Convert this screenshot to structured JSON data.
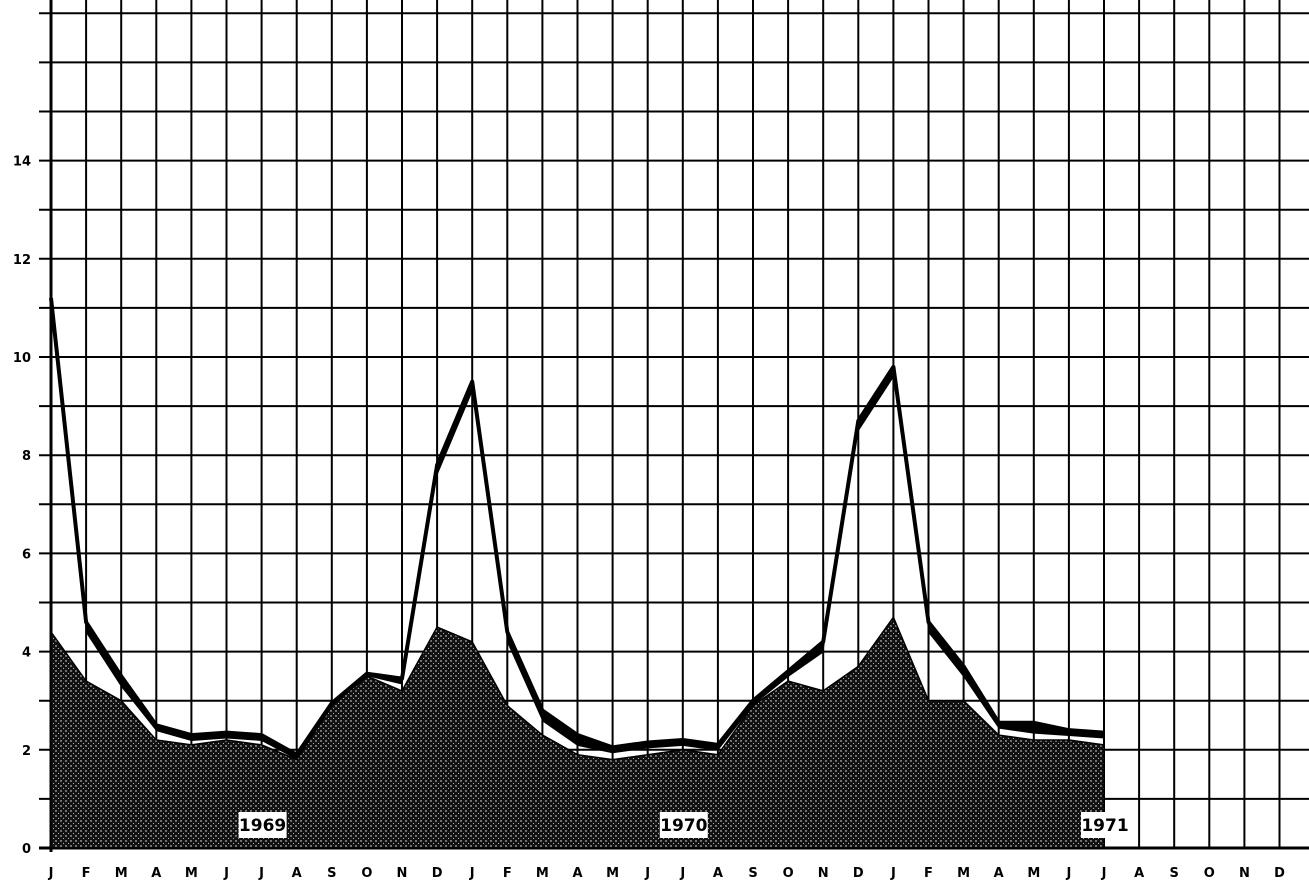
{
  "chart_data": {
    "type": "area",
    "title": "",
    "xlabel": "",
    "ylabel": "",
    "ylim": [
      0,
      17
    ],
    "y_ticks": [
      0,
      2,
      4,
      6,
      8,
      10,
      12,
      14
    ],
    "grid": true,
    "x_tick_labels": [
      "J",
      "F",
      "M",
      "A",
      "M",
      "J",
      "J",
      "A",
      "S",
      "O",
      "N",
      "D",
      "J",
      "F",
      "M",
      "A",
      "M",
      "J",
      "J",
      "A",
      "S",
      "O",
      "N",
      "D",
      "J",
      "F",
      "M",
      "A",
      "M",
      "J",
      "J",
      "A",
      "S",
      "O",
      "N",
      "D"
    ],
    "year_labels": [
      {
        "label": "1969",
        "month_index": 6
      },
      {
        "label": "1970",
        "month_index": 18
      },
      {
        "label": "1971",
        "month_index": 30
      }
    ],
    "series": [
      {
        "values": [
          4.4,
          3.4,
          3.0,
          2.2,
          2.1,
          2.2,
          2.1,
          1.8,
          2.9,
          3.5,
          3.2,
          4.5,
          4.2,
          2.9,
          2.3,
          1.9,
          1.8,
          1.9,
          2.0,
          1.9,
          2.9,
          3.4,
          3.2,
          3.7,
          4.7,
          3.0,
          3.0,
          2.3,
          2.2,
          2.2,
          2.1
        ]
      },
      {
        "values": [
          11.2,
          4.6,
          3.5,
          2.5,
          2.3,
          2.35,
          2.3,
          1.9,
          2.95,
          3.55,
          3.45,
          7.8,
          9.5,
          4.4,
          2.8,
          2.3,
          2.05,
          2.15,
          2.2,
          2.1,
          3.0,
          3.6,
          4.2,
          8.7,
          9.8,
          4.6,
          3.7,
          2.55,
          2.55,
          2.4,
          2.35
        ]
      }
    ],
    "colors": {
      "background": "#ffffff",
      "grid": "#000000",
      "fill": "#1a1a1a",
      "band": "#000000"
    }
  }
}
